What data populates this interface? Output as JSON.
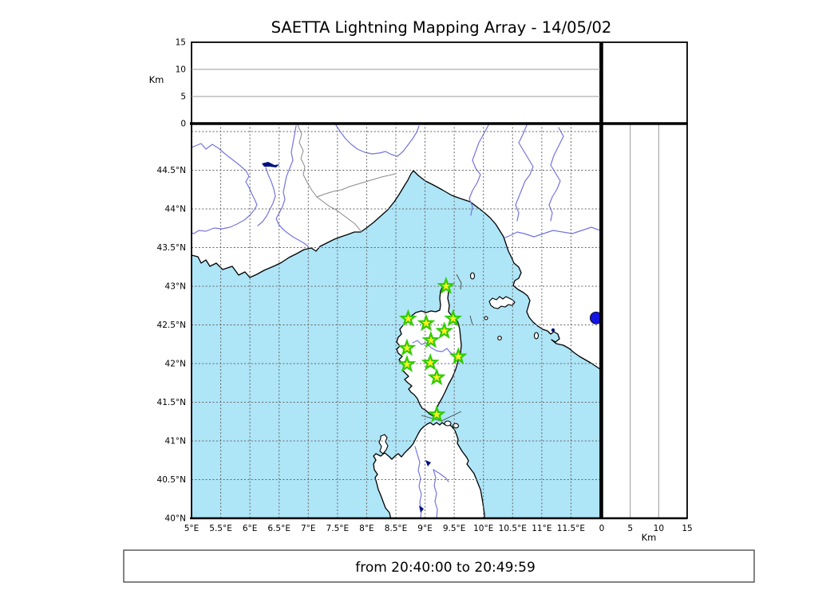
{
  "title": "SAETTA Lightning Mapping Array - 14/05/02",
  "footer": {
    "text": "from 20:40:00 to 20:49:59"
  },
  "colors": {
    "sea": "#aee5f7",
    "land": "#ffffff",
    "coastline": "#000000",
    "river": "#7575e0",
    "country_border": "#8a8a8a",
    "map_grid": "#666666",
    "panel_gridline": "#999999",
    "station_fill": "#ffee22",
    "station_edge": "#2ecc00",
    "event_fill": "#1414e0",
    "lake": "#001080"
  },
  "top_axis": {
    "unit": "Km",
    "ticks": [
      {
        "value": 0,
        "label": "0"
      },
      {
        "value": 5,
        "label": "5"
      },
      {
        "value": 10,
        "label": "10"
      },
      {
        "value": 15,
        "label": "15"
      }
    ]
  },
  "right_axis": {
    "unit": "Km",
    "ticks": [
      {
        "value": 0,
        "label": "0"
      },
      {
        "value": 5,
        "label": "5"
      },
      {
        "value": 10,
        "label": "10"
      },
      {
        "value": 15,
        "label": "15"
      }
    ]
  },
  "map": {
    "lat_ticks": [
      {
        "value": 40,
        "label": "40°N"
      },
      {
        "value": 40.5,
        "label": "40.5°N"
      },
      {
        "value": 41,
        "label": "41°N"
      },
      {
        "value": 41.5,
        "label": "41.5°N"
      },
      {
        "value": 42,
        "label": "42°N"
      },
      {
        "value": 42.5,
        "label": "42.5°N"
      },
      {
        "value": 43,
        "label": "43°N"
      },
      {
        "value": 43.5,
        "label": "43.5°N"
      },
      {
        "value": 44,
        "label": "44°N"
      },
      {
        "value": 44.5,
        "label": "44.5°N"
      },
      {
        "value": 45,
        "label": ""
      }
    ],
    "lon_ticks": [
      {
        "value": 5,
        "label": "5°E"
      },
      {
        "value": 5.5,
        "label": "5.5°E"
      },
      {
        "value": 6,
        "label": "6°E"
      },
      {
        "value": 6.5,
        "label": "6.5°E"
      },
      {
        "value": 7,
        "label": "7°E"
      },
      {
        "value": 7.5,
        "label": "7.5°E"
      },
      {
        "value": 8,
        "label": "8°E"
      },
      {
        "value": 8.5,
        "label": "8.5°E"
      },
      {
        "value": 9,
        "label": "9°E"
      },
      {
        "value": 9.5,
        "label": "9.5°E"
      },
      {
        "value": 10,
        "label": "10°E"
      },
      {
        "value": 10.5,
        "label": "10.5°E"
      },
      {
        "value": 11,
        "label": "11°E"
      },
      {
        "value": 11.5,
        "label": "11.5°E"
      }
    ]
  },
  "stations": [
    {
      "lon": 9.36,
      "lat": 43.0
    },
    {
      "lon": 8.71,
      "lat": 42.58
    },
    {
      "lon": 9.02,
      "lat": 42.52
    },
    {
      "lon": 9.48,
      "lat": 42.58
    },
    {
      "lon": 9.33,
      "lat": 42.42
    },
    {
      "lon": 9.1,
      "lat": 42.3
    },
    {
      "lon": 8.69,
      "lat": 42.2
    },
    {
      "lon": 9.57,
      "lat": 42.09
    },
    {
      "lon": 8.69,
      "lat": 41.99
    },
    {
      "lon": 9.09,
      "lat": 42.01
    },
    {
      "lon": 9.2,
      "lat": 41.82
    },
    {
      "lon": 9.2,
      "lat": 41.34
    }
  ],
  "event": {
    "lon": 11.93,
    "lat": 42.59
  }
}
